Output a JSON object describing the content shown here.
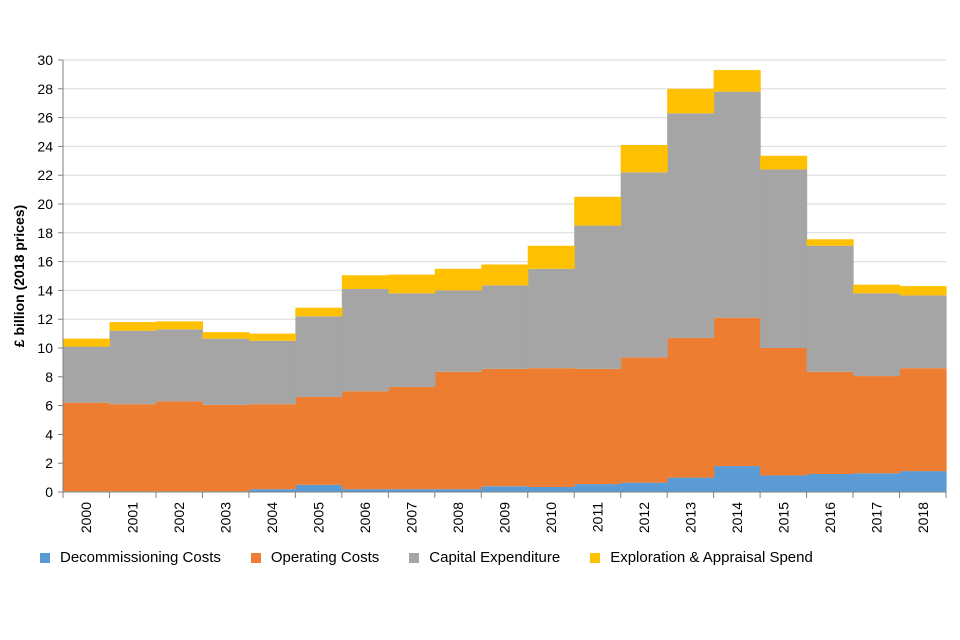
{
  "chart_data": {
    "type": "area",
    "stacked": true,
    "step": true,
    "title": "",
    "xlabel": "",
    "ylabel": "£ billion (2018 prices)",
    "ylim": [
      0,
      30
    ],
    "yticks": [
      0,
      2,
      4,
      6,
      8,
      10,
      12,
      14,
      16,
      18,
      20,
      22,
      24,
      26,
      28,
      30
    ],
    "categories": [
      "2000",
      "2001",
      "2002",
      "2003",
      "2004",
      "2005",
      "2006",
      "2007",
      "2008",
      "2009",
      "2010",
      "2011",
      "2012",
      "2013",
      "2014",
      "2015",
      "2016",
      "2017",
      "2018"
    ],
    "series": [
      {
        "name": "Decommissioning Costs",
        "color": "#5B9BD5",
        "values": [
          0.05,
          0.05,
          0.05,
          0.05,
          0.2,
          0.5,
          0.2,
          0.2,
          0.2,
          0.4,
          0.35,
          0.55,
          0.65,
          1.0,
          1.8,
          1.15,
          1.25,
          1.3,
          1.45
        ]
      },
      {
        "name": "Operating Costs",
        "color": "#ED7D31",
        "values": [
          6.15,
          6.05,
          6.25,
          6.0,
          5.9,
          6.1,
          6.8,
          7.1,
          8.15,
          8.15,
          8.25,
          8.0,
          8.7,
          9.7,
          10.3,
          8.85,
          7.1,
          6.75,
          7.15
        ]
      },
      {
        "name": "Capital Expenditure",
        "color": "#A5A5A5",
        "values": [
          3.9,
          5.1,
          5.0,
          4.6,
          4.4,
          5.6,
          7.1,
          6.5,
          5.65,
          5.8,
          6.9,
          9.95,
          12.85,
          15.6,
          15.7,
          12.4,
          8.75,
          5.75,
          5.05
        ]
      },
      {
        "name": "Exploration & Appraisal Spend",
        "color": "#FFC000",
        "values": [
          0.55,
          0.6,
          0.55,
          0.45,
          0.5,
          0.6,
          0.95,
          1.3,
          1.5,
          1.45,
          1.6,
          2.0,
          1.9,
          1.7,
          1.5,
          0.95,
          0.45,
          0.6,
          0.65
        ]
      }
    ],
    "legend_position": "bottom",
    "grid": true
  }
}
